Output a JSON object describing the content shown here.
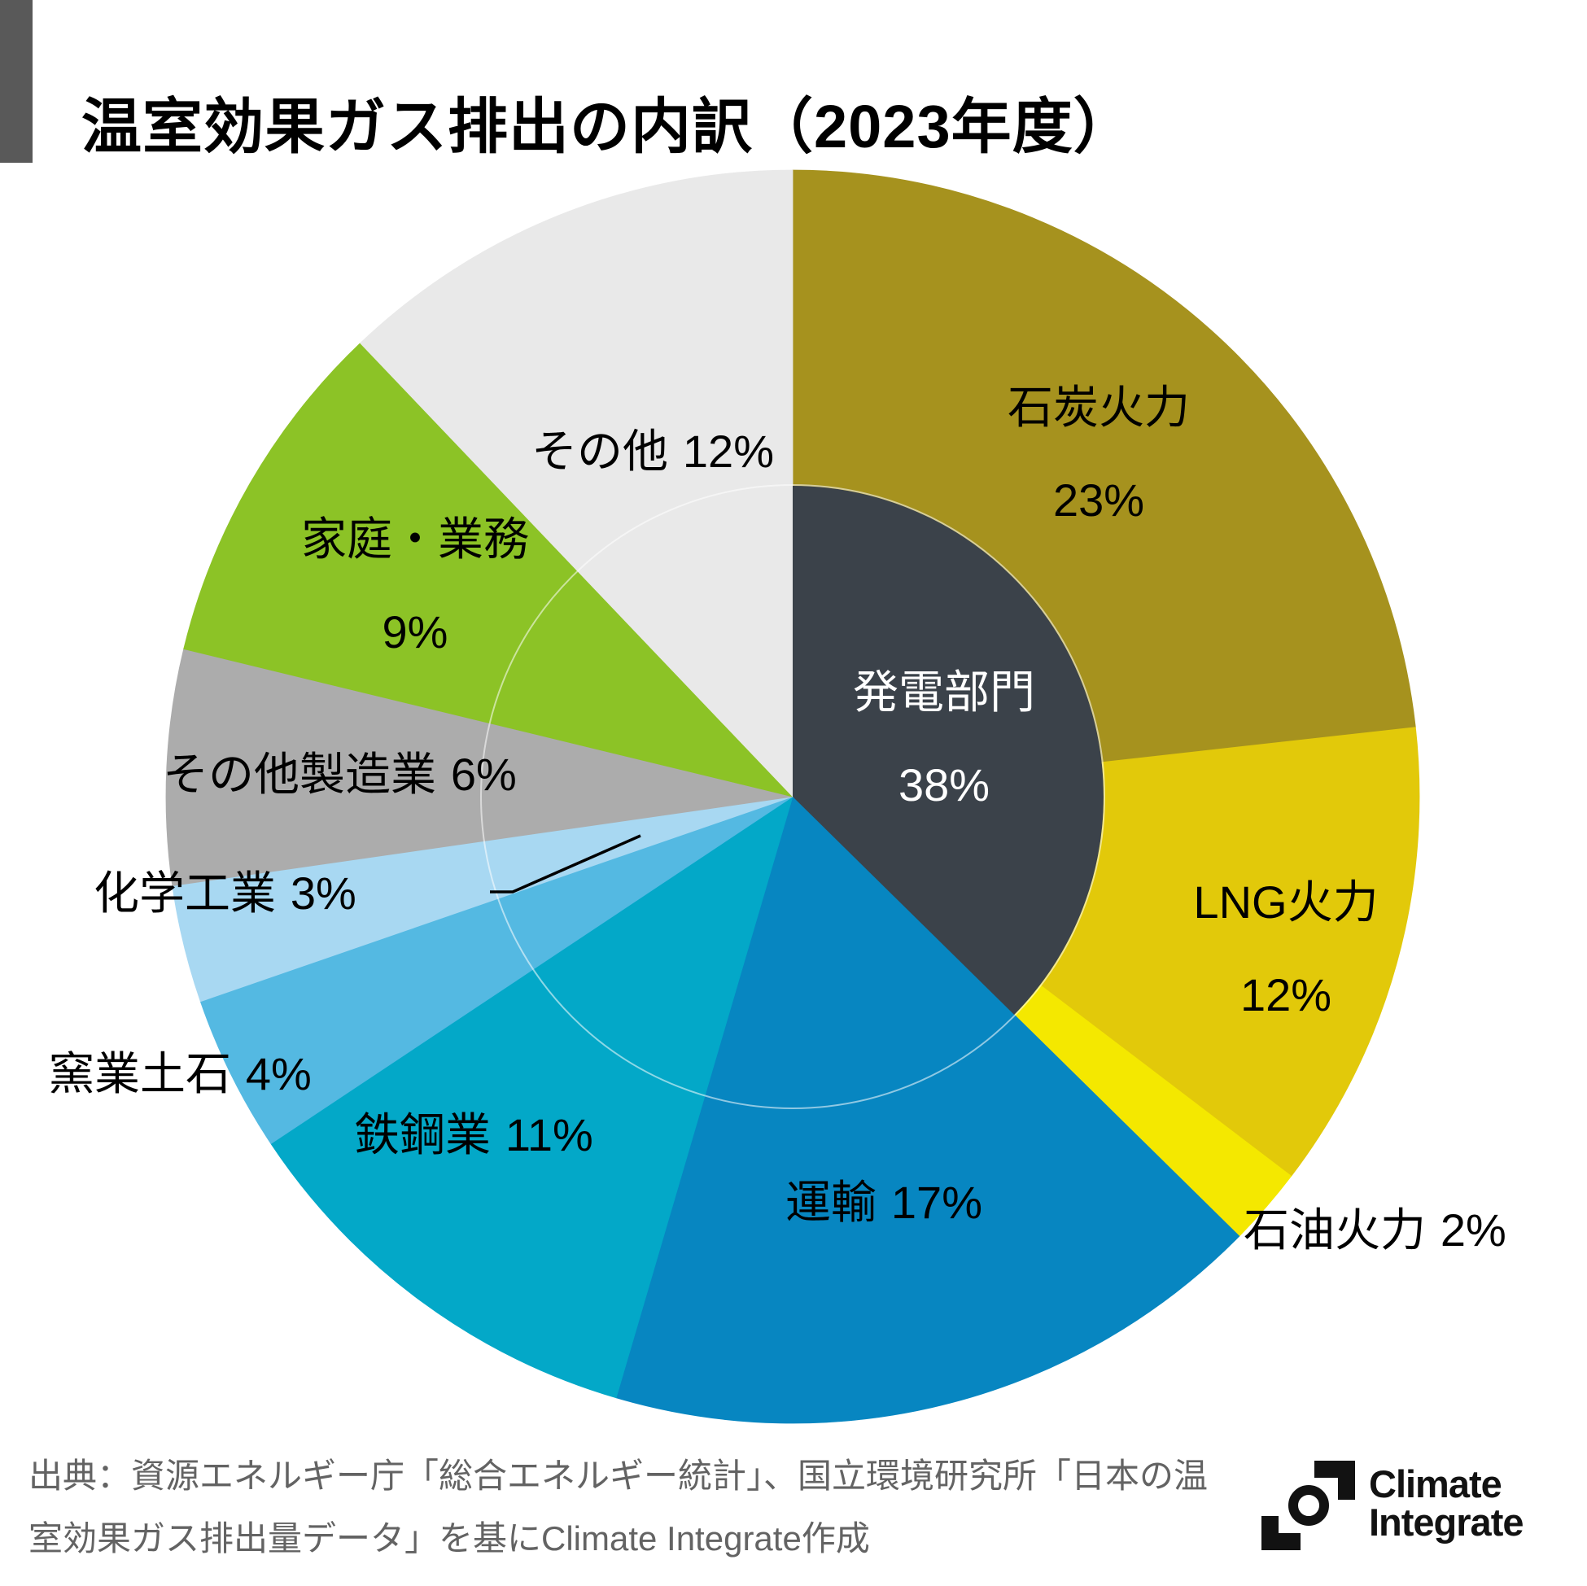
{
  "header": {
    "title": "温室効果ガス排出の内訳（2023年度）"
  },
  "chart_data": {
    "type": "pie",
    "title": "温室効果ガス排出の内訳（2023年度）",
    "unit": "%",
    "direction": "clockwise",
    "start_angle_deg": 0,
    "slices": [
      {
        "label": "石炭火力",
        "value": 23,
        "pct_label": "23%",
        "color": "#A6921E"
      },
      {
        "label": "LNG火力",
        "value": 12,
        "pct_label": "12%",
        "color": "#E2C90A"
      },
      {
        "label": "石油火力",
        "value": 2,
        "pct_label": "2%",
        "color": "#F4E800"
      },
      {
        "label": "運輸",
        "value": 17,
        "pct_label": "17%",
        "color": "#0786C1"
      },
      {
        "label": "鉄鋼業",
        "value": 11,
        "pct_label": "11%",
        "color": "#03A8C8"
      },
      {
        "label": "窯業土石",
        "value": 4,
        "pct_label": "4%",
        "color": "#54B9E2"
      },
      {
        "label": "化学工業",
        "value": 3,
        "pct_label": "3%",
        "color": "#A8D8F2"
      },
      {
        "label": "その他製造業",
        "value": 6,
        "pct_label": "6%",
        "color": "#ACACAC"
      },
      {
        "label": "家庭・業務",
        "value": 9,
        "pct_label": "9%",
        "color": "#8CC326"
      },
      {
        "label": "その他",
        "value": 12,
        "pct_label": "12%",
        "color": "#E9E9E9"
      }
    ],
    "center_group": {
      "label": "発電部門",
      "value": 38,
      "pct_label": "38%",
      "color": "#3B424A",
      "text_color": "#FFFFFF",
      "includes": [
        "石炭火力",
        "LNG火力",
        "石油火力"
      ]
    }
  },
  "source": {
    "line1": "出典：資源エネルギー庁「総合エネルギー統計」、国立環境研究所「日本の温",
    "line2": "室効果ガス排出量データ」を基にClimate Integrate作成"
  },
  "logo": {
    "line1": "Climate",
    "line2": "Integrate"
  },
  "colors": {
    "accent_bar": "#595959",
    "source_text": "#636363",
    "background": "#FFFFFF",
    "label_text": "#000000"
  }
}
